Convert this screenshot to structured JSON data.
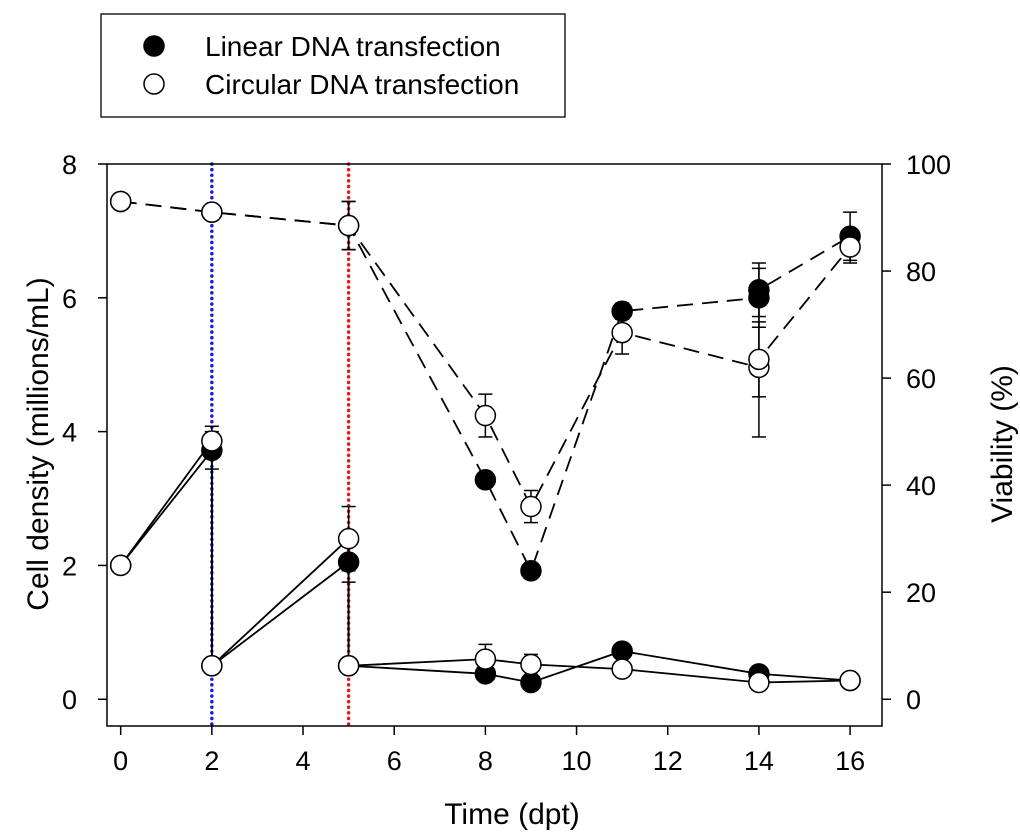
{
  "chart_data": {
    "type": "scatter",
    "title": "",
    "xlabel": "Time (dpt)",
    "ylabel_left": "Cell density (millions/mL)",
    "ylabel_right": "Viability (%)",
    "xlim": [
      -0.3,
      16.7
    ],
    "ylim_left": [
      -0.4,
      8
    ],
    "ylim_right": [
      -5,
      100
    ],
    "x_ticks": [
      0,
      2,
      4,
      6,
      8,
      10,
      12,
      14,
      16
    ],
    "y_left_ticks": [
      0,
      2,
      4,
      6,
      8
    ],
    "y_right_ticks": [
      0,
      20,
      40,
      60,
      80,
      100
    ],
    "grid": false,
    "legend_position": "top-left",
    "vertical_lines": [
      {
        "x": 2,
        "color": "#1a1adc",
        "style": "dotted"
      },
      {
        "x": 5,
        "color": "#e01b1b",
        "style": "dotted"
      }
    ],
    "legend": [
      {
        "label": "Linear DNA transfection",
        "marker": "filled"
      },
      {
        "label": "Circular DNA transfection",
        "marker": "open"
      }
    ],
    "series": [
      {
        "group": "Linear DNA transfection",
        "marker": "filled",
        "axis": "left",
        "line": "solid",
        "points": [
          {
            "x": 0,
            "y": 2
          },
          {
            "x": 2,
            "y": 3.72,
            "err": 0.28
          },
          {
            "x": 2,
            "y": 0.5
          },
          {
            "x": 5,
            "y": 2.05,
            "err": 0.3
          },
          {
            "x": 5,
            "y": 0.5
          },
          {
            "x": 8,
            "y": 0.38
          },
          {
            "x": 9,
            "y": 0.25
          },
          {
            "x": 11,
            "y": 0.72
          },
          {
            "x": 14,
            "y": 0.38
          },
          {
            "x": 16,
            "y": 0.28
          }
        ]
      },
      {
        "group": "Circular DNA transfection",
        "marker": "open",
        "axis": "left",
        "line": "solid",
        "points": [
          {
            "x": 0,
            "y": 2
          },
          {
            "x": 2,
            "y": 3.86,
            "err": 0.22
          },
          {
            "x": 2,
            "y": 0.5
          },
          {
            "x": 5,
            "y": 2.4,
            "err": 0.48
          },
          {
            "x": 5,
            "y": 0.5
          },
          {
            "x": 8,
            "y": 0.6,
            "err": 0.22
          },
          {
            "x": 9,
            "y": 0.52,
            "err": 0.15
          },
          {
            "x": 11,
            "y": 0.45
          },
          {
            "x": 14,
            "y": 0.25
          },
          {
            "x": 16,
            "y": 0.28
          }
        ]
      },
      {
        "group": "Linear DNA transfection",
        "marker": "filled",
        "axis": "right",
        "line": "dashed",
        "points": [
          {
            "x": 0,
            "y": 93
          },
          {
            "x": 2,
            "y": 91
          },
          {
            "x": 5,
            "y": 88.5,
            "err": 4.5
          },
          {
            "x": 8,
            "y": 41
          },
          {
            "x": 9,
            "y": 24
          },
          {
            "x": 11,
            "y": 72.5,
            "err": 1.5
          },
          {
            "x": 14,
            "y": 75,
            "err": 5.5
          },
          {
            "x": 14,
            "y": 76.5,
            "err": 5
          },
          {
            "x": 16,
            "y": 86.5,
            "err": 4.5
          }
        ]
      },
      {
        "group": "Circular DNA transfection",
        "marker": "open",
        "axis": "right",
        "line": "dashed",
        "points": [
          {
            "x": 0,
            "y": 93
          },
          {
            "x": 2,
            "y": 91
          },
          {
            "x": 5,
            "y": 88.5,
            "err": 4.5
          },
          {
            "x": 8,
            "y": 53,
            "err": 4
          },
          {
            "x": 9,
            "y": 36,
            "err": 3
          },
          {
            "x": 11,
            "y": 68.5,
            "err": 4
          },
          {
            "x": 14,
            "y": 62,
            "err": 13
          },
          {
            "x": 14,
            "y": 63.5,
            "err": 7
          },
          {
            "x": 16,
            "y": 84.5,
            "err": 3
          }
        ]
      }
    ]
  }
}
